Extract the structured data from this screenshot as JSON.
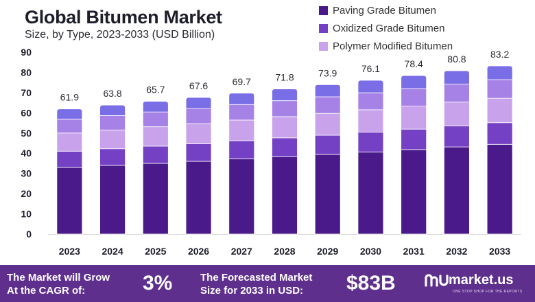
{
  "colors": {
    "paving": "#4a1a8a",
    "oxidized": "#7440c4",
    "polymer": "#c8a3ec",
    "fourth": "#a682e6",
    "fifth": "#7a6ee6",
    "footer_bg": "#5e2f8c"
  },
  "chart_data": {
    "type": "bar",
    "stacked": true,
    "title": "Global Bitumen Market",
    "subtitle": "Size, by Type, 2023-2033 (USD Billion)",
    "categories": [
      "2023",
      "2024",
      "2025",
      "2026",
      "2027",
      "2028",
      "2029",
      "2030",
      "2031",
      "2032",
      "2033"
    ],
    "totals": [
      61.9,
      63.8,
      65.7,
      67.6,
      69.7,
      71.8,
      73.9,
      76.1,
      78.4,
      80.8,
      83.2
    ],
    "total_labels": [
      "61.9",
      "63.8",
      "65.7",
      "67.6",
      "69.7",
      "71.8",
      "73.9",
      "76.1",
      "78.4",
      "80.8",
      "83.2"
    ],
    "series": [
      {
        "name": "Paving Grade Bitumen",
        "values": [
          33.0,
          34.0,
          35.0,
          36.0,
          37.2,
          38.3,
          39.4,
          40.6,
          41.8,
          43.1,
          44.4
        ]
      },
      {
        "name": "Oxidized Grade Bitumen",
        "values": [
          8.0,
          8.2,
          8.5,
          8.7,
          9.0,
          9.3,
          9.5,
          9.8,
          10.1,
          10.4,
          10.7
        ]
      },
      {
        "name": "Polymer Modified Bitumen",
        "values": [
          9.0,
          9.3,
          9.6,
          9.9,
          10.2,
          10.5,
          10.8,
          11.1,
          11.4,
          11.8,
          12.1
        ]
      },
      {
        "name": "",
        "values": [
          6.9,
          7.1,
          7.3,
          7.5,
          7.7,
          7.9,
          8.2,
          8.4,
          8.7,
          8.9,
          9.2
        ]
      },
      {
        "name": "",
        "values": [
          5.0,
          5.2,
          5.3,
          5.5,
          5.6,
          5.8,
          6.0,
          6.2,
          6.4,
          6.6,
          6.8
        ]
      }
    ],
    "ylim": [
      0,
      90
    ],
    "yticks": [
      0,
      10,
      20,
      30,
      40,
      50,
      60,
      70,
      80,
      90
    ],
    "legend_position": "top-right",
    "grid": false
  },
  "legend": [
    {
      "label": "Paving Grade Bitumen",
      "color": "#4a1a8a"
    },
    {
      "label": "Oxidized Grade Bitumen",
      "color": "#7440c4"
    },
    {
      "label": "Polymer Modified Bitumen",
      "color": "#c8a3ec"
    }
  ],
  "footer": {
    "cagr_label_1": "The Market will Grow",
    "cagr_label_2": "At the CAGR of:",
    "cagr_value": "3%",
    "forecast_label_1": "The Forecasted Market",
    "forecast_label_2": "Size for 2033 in USD:",
    "forecast_value": "$83B",
    "brand": "market.us",
    "brand_tagline": "ONE STOP SHOP FOR THE REPORTS"
  }
}
